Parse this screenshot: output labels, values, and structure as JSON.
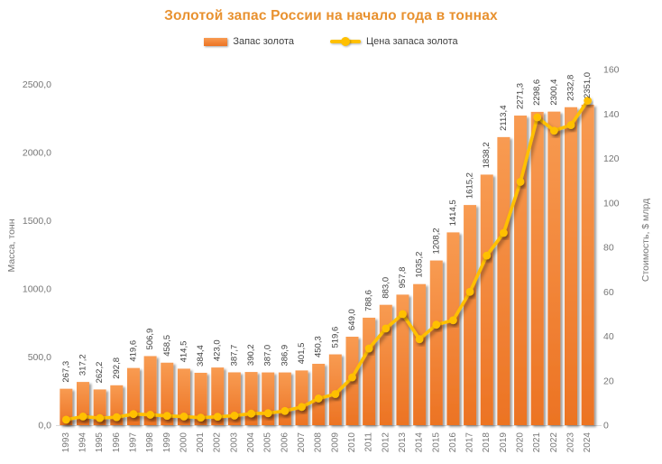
{
  "title": {
    "text": "Золотой запас России на начало года в тоннах",
    "color": "#E8912F"
  },
  "legend": {
    "items": [
      {
        "label": "Запас золота",
        "type": "bar"
      },
      {
        "label": "Цена запаса золота",
        "type": "line"
      }
    ]
  },
  "colors": {
    "bar": "#ED7D31",
    "bar_light": "#F89B52",
    "line": "#FFC000",
    "label_text": "#404040",
    "axis_text": "#767676"
  },
  "chart_data": {
    "type": "combo",
    "title": "Золотой запас России на начало года в тоннах",
    "legend_position": "top",
    "grid": false,
    "categories": [
      "1993",
      "1994",
      "1995",
      "1996",
      "1997",
      "1998",
      "1999",
      "2000",
      "2001",
      "2002",
      "2003",
      "2004",
      "2005",
      "2006",
      "2007",
      "2008",
      "2009",
      "2010",
      "2011",
      "2012",
      "2013",
      "2014",
      "2015",
      "2016",
      "2017",
      "2018",
      "2019",
      "2020",
      "2021",
      "2022",
      "2023",
      "2024"
    ],
    "series": [
      {
        "name": "Запас золота",
        "type": "bar",
        "axis": "left",
        "color": "#ED7D31",
        "values": [
          267.3,
          317.2,
          262.2,
          292.8,
          419.6,
          506.9,
          458.5,
          414.5,
          384.4,
          423.0,
          387.7,
          390.2,
          387.0,
          386.9,
          401.5,
          450.3,
          519.6,
          649.0,
          788.6,
          883.0,
          957.8,
          1035.2,
          1208.2,
          1414.5,
          1615.2,
          1838.2,
          2113.4,
          2271.3,
          2298.6,
          2300.4,
          2332.8,
          2351.0
        ],
        "labels": [
          "267,3",
          "317,2",
          "262,2",
          "292,8",
          "419,6",
          "506,9",
          "458,5",
          "414,5",
          "384,4",
          "423,0",
          "387,7",
          "390,2",
          "387,0",
          "386,9",
          "401,5",
          "450,3",
          "519,6",
          "649,0",
          "788,6",
          "883,0",
          "957,8",
          "1035,2",
          "1208,2",
          "1414,5",
          "1615,2",
          "1838,2",
          "2113,4",
          "2271,3",
          "2298,6",
          "2300,4",
          "2332,8",
          "2351,0"
        ]
      },
      {
        "name": "Цена запаса золота",
        "type": "line",
        "axis": "right",
        "color": "#FFC000",
        "values": [
          2.5,
          3.9,
          3.2,
          3.6,
          5.0,
          4.7,
          4.2,
          3.9,
          3.4,
          3.8,
          4.3,
          5.2,
          5.4,
          6.4,
          8.2,
          12.0,
          14.0,
          21.5,
          34.5,
          43.5,
          50.0,
          38.7,
          45.2,
          47.2,
          60.0,
          76.3,
          86.5,
          109.5,
          138.5,
          132.5,
          135.0,
          146.0
        ]
      }
    ],
    "left_axis": {
      "title": "Масса, тонн",
      "min": 0,
      "max": 2500,
      "step": 500,
      "tick_labels": [
        "0,0",
        "500,0",
        "1000,0",
        "1500,0",
        "2000,0",
        "2500,0"
      ]
    },
    "right_axis": {
      "title": "Стоимость, $ млрд",
      "min": 0,
      "max": 160,
      "step": 20,
      "tick_labels": [
        "0",
        "20",
        "40",
        "60",
        "80",
        "100",
        "120",
        "140",
        "160"
      ]
    }
  }
}
